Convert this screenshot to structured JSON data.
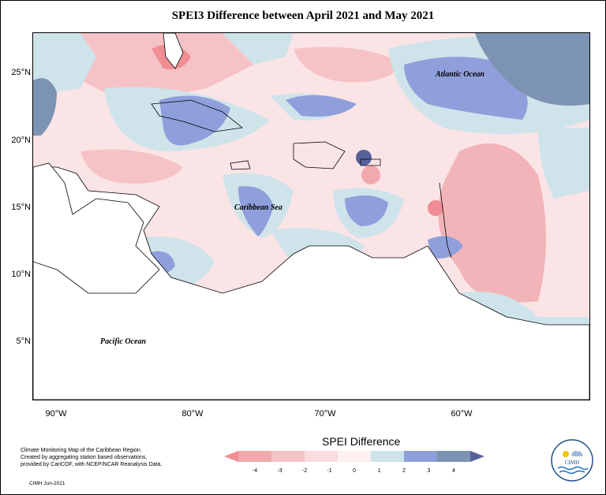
{
  "title": "SPEI3 Difference between April 2021 and May 2021",
  "lat_labels": [
    "25°N",
    "20°N",
    "15°N",
    "10°N",
    "5°N"
  ],
  "lon_labels": [
    "90°W",
    "80°W",
    "70°W",
    "60°W"
  ],
  "places": {
    "atlantic": "Atlantic Ocean",
    "caribbean": "Caribbean Sea",
    "pacific": "Pacific Ocean"
  },
  "credits": [
    "Climate Monitoring Map of the Caribbean Region.",
    "Created by aggregating station based observations,",
    "provided by CariCOF, with NCEP/NCAR Reanalysis Data."
  ],
  "stamp": "CIMH  Jun-2021",
  "legend": {
    "title": "SPEI Difference",
    "ticks": [
      "-4",
      "-3",
      "-2",
      "-1",
      "0",
      "1",
      "2",
      "3",
      "4"
    ],
    "colors": [
      "#f08e93",
      "#f2a9ad",
      "#f5c3c6",
      "#fadcdf",
      "#fdf0f0",
      "#cfe3ea",
      "#8f9fdb",
      "#7d93b3",
      "#56619a"
    ]
  },
  "logo_text": "CIMH",
  "palette": {
    "red_strong": "#f08e93",
    "red_mid": "#f2b4b8",
    "pink": "#f8d6d9",
    "neutral": "#fdf0f0",
    "light_blue": "#cfe3ea",
    "blue": "#8f9fdb",
    "steel": "#7d93b3",
    "navy": "#56619a"
  }
}
